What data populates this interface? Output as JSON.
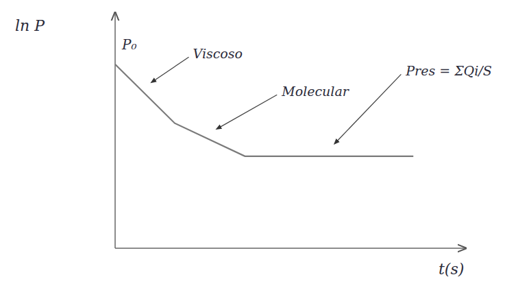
{
  "chart_data": {
    "type": "line",
    "x_label": "t(s)",
    "y_label": "ln P",
    "start_label": "P₀",
    "x": [
      0,
      1.7,
      3.7,
      8.5
    ],
    "values": [
      7.8,
      5.3,
      3.9,
      3.9
    ],
    "xlim": [
      0,
      10
    ],
    "ylim": [
      0,
      10
    ],
    "annotations": [
      "Viscoso",
      "Molecular",
      "Pres = ΣQi/S"
    ],
    "tick_labels": false,
    "grid": false,
    "color": "#7a7a7a"
  }
}
